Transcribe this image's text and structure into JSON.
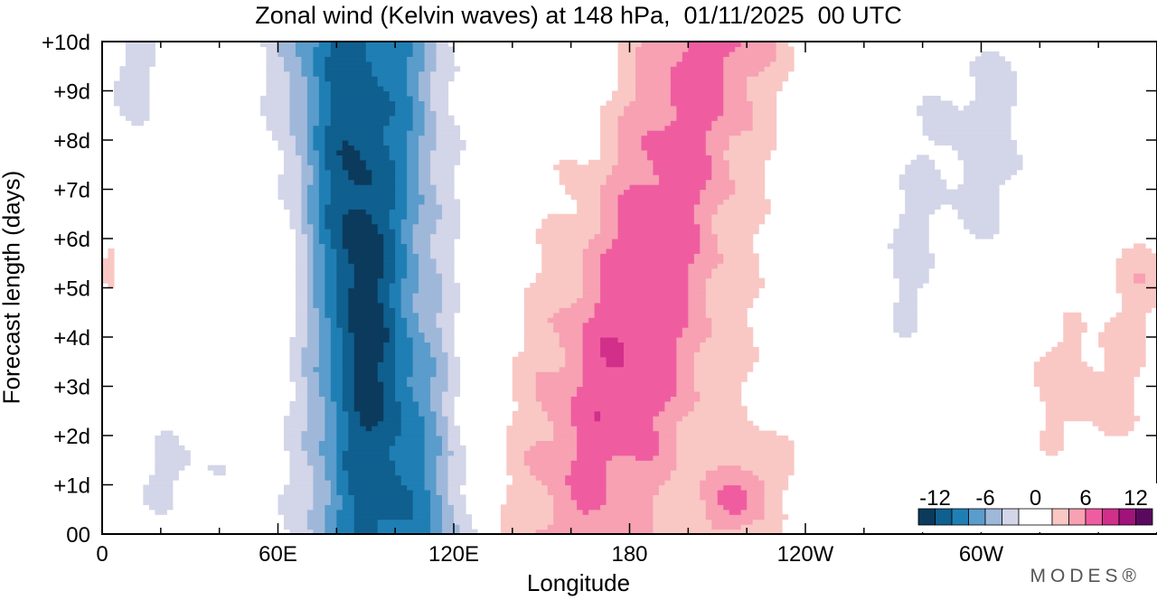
{
  "chart_data": {
    "type": "heatmap",
    "title": "Zonal wind (Kelvin waves) at 148 hPa,  01/11/2025  00 UTC",
    "xlabel": "Longitude",
    "ylabel": "Forecast length (days)",
    "x_ticks": [
      "0",
      "60E",
      "120E",
      "180",
      "120W",
      "60W"
    ],
    "x_tick_values": [
      0,
      60,
      120,
      180,
      240,
      300
    ],
    "xlim": [
      0,
      360
    ],
    "y_ticks": [
      "00",
      "+1d",
      "+2d",
      "+3d",
      "+4d",
      "+5d",
      "+6d",
      "+7d",
      "+8d",
      "+9d",
      "+10d"
    ],
    "y_tick_values": [
      0,
      1,
      2,
      3,
      4,
      5,
      6,
      7,
      8,
      9,
      10
    ],
    "ylim": [
      0,
      10
    ],
    "colorbar": {
      "tick_labels": [
        "-12",
        "-6",
        "0",
        "6",
        "12"
      ],
      "tick_values": [
        -12,
        -6,
        0,
        6,
        12
      ],
      "levels": [
        -14,
        -12,
        -10,
        -8,
        -6,
        -4,
        -2,
        2,
        4,
        6,
        8,
        10,
        12,
        14
      ],
      "colors": [
        "#0b3a5c",
        "#0f5f8f",
        "#1f7fb4",
        "#5a9ccb",
        "#9fb8da",
        "#d3d5e8",
        "#ffffff",
        "#f9c8c4",
        "#f7a1b3",
        "#ef5da0",
        "#d12f8a",
        "#a0137b",
        "#5a0a5e"
      ],
      "placement": "lower-right"
    },
    "features": [
      {
        "name": "easterly-band",
        "lon_start": 75,
        "lon_end": 95,
        "day_start": 0,
        "day_end": 10,
        "peak_value": -13
      },
      {
        "name": "westerly-band",
        "lon_start": 140,
        "lon_end": 200,
        "day_start": 0,
        "day_end": 10,
        "peak_value": 8
      },
      {
        "name": "westerly-lower-right",
        "lon_start": 310,
        "lon_end": 360,
        "day_start": 1.5,
        "day_end": 5,
        "peak_value": 3
      },
      {
        "name": "westerly-bottom",
        "lon_start": 195,
        "lon_end": 240,
        "day_start": 0,
        "day_end": 1.8,
        "peak_value": 5
      },
      {
        "name": "weak-easterly-right",
        "lon_start": 270,
        "lon_end": 345,
        "day_start": 4,
        "day_end": 10,
        "peak_value": -3
      }
    ]
  },
  "brand": "MODES®"
}
